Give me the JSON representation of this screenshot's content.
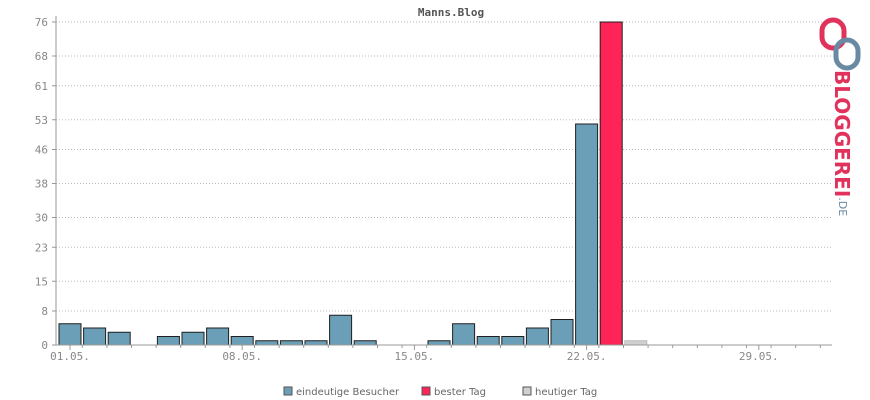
{
  "chart_data": {
    "type": "bar",
    "title": "Manns.Blog",
    "y_ticks": [
      "0",
      "8",
      "15",
      "23",
      "30",
      "38",
      "46",
      "53",
      "61",
      "68",
      "76"
    ],
    "ylim": [
      0,
      76
    ],
    "x_tick_labels": [
      {
        "label": "01.05.",
        "day": 1
      },
      {
        "label": "08.05.",
        "day": 8
      },
      {
        "label": "15.05.",
        "day": 15
      },
      {
        "label": "22.05.",
        "day": 22
      },
      {
        "label": "29.05.",
        "day": 29
      }
    ],
    "days": [
      1,
      2,
      3,
      4,
      5,
      6,
      7,
      8,
      9,
      10,
      11,
      12,
      13,
      14,
      15,
      16,
      17,
      18,
      19,
      20,
      21,
      22,
      23,
      24,
      25,
      26,
      27,
      28,
      29,
      30,
      31
    ],
    "series": [
      {
        "name": "eindeutige Besucher",
        "color": "#6b9fb8",
        "values": [
          5,
          4,
          3,
          0,
          2,
          3,
          4,
          2,
          1,
          1,
          1,
          7,
          1,
          0,
          0,
          1,
          5,
          2,
          2,
          4,
          6,
          52,
          0,
          0,
          0,
          0,
          0,
          0,
          0,
          0,
          0
        ]
      },
      {
        "name": "bester Tag",
        "color": "#ff2457",
        "values": [
          0,
          0,
          0,
          0,
          0,
          0,
          0,
          0,
          0,
          0,
          0,
          0,
          0,
          0,
          0,
          0,
          0,
          0,
          0,
          0,
          0,
          0,
          76,
          0,
          0,
          0,
          0,
          0,
          0,
          0,
          0
        ]
      },
      {
        "name": "heutiger Tag",
        "color": "#d0d0d0",
        "values": [
          0,
          0,
          0,
          0,
          0,
          0,
          0,
          0,
          0,
          0,
          0,
          0,
          0,
          0,
          0,
          0,
          0,
          0,
          0,
          0,
          0,
          0,
          0,
          1,
          0,
          0,
          0,
          0,
          0,
          0,
          0
        ]
      }
    ],
    "grid": true,
    "legend_position": "bottom-center"
  },
  "branding": {
    "logo_text": "BLOGGEREI",
    "logo_suffix": ".DE",
    "logo_colors": {
      "primary": "#e0325a",
      "secondary": "#6a8aa3"
    }
  }
}
